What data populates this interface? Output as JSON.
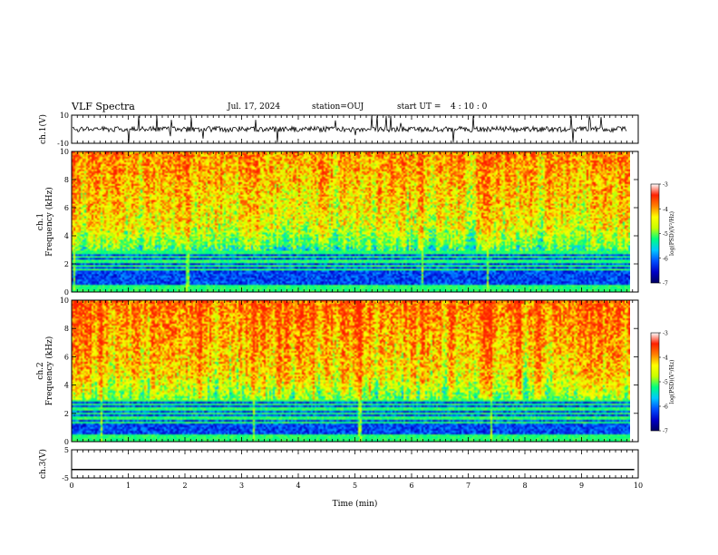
{
  "header": {
    "title": "VLF Spectra",
    "date": "Jul. 17, 2024",
    "station": "station=OUJ",
    "start_label": "start UT =",
    "start_time": "4 : 10 : 0"
  },
  "chart_data": [
    {
      "type": "line",
      "panel": "ch1-waveform",
      "ylabel": "ch.1(V)",
      "ylim": [
        -10,
        10
      ],
      "yticks": [
        "10",
        "-10"
      ],
      "xlim": [
        0,
        10
      ],
      "baseline": 0,
      "color": "#000000"
    },
    {
      "type": "heatmap",
      "panel": "ch1-spectrogram",
      "ylabel": "ch.1\nFrequency (kHz)",
      "ylabel_line1": "ch.1",
      "ylabel_line2": "Frequency (kHz)",
      "ylim": [
        0,
        10
      ],
      "yticks": [
        "0",
        "2",
        "4",
        "6",
        "8",
        "10"
      ],
      "xlim": [
        0,
        10
      ],
      "data_end_min": 9.85,
      "colorbar": {
        "label": "log(PSD)(V²/Hz)",
        "range": [
          -7,
          -3
        ],
        "ticks": [
          "-3",
          "-4",
          "-5",
          "-6",
          "-7"
        ]
      }
    },
    {
      "type": "heatmap",
      "panel": "ch2-spectrogram",
      "ylabel": "ch.2\nFrequency (kHz)",
      "ylabel_line1": "ch.2",
      "ylabel_line2": "Frequency (kHz)",
      "ylim": [
        0,
        10
      ],
      "yticks": [
        "0",
        "2",
        "4",
        "6",
        "8",
        "10"
      ],
      "xlim": [
        0,
        10
      ],
      "data_end_min": 9.85,
      "colorbar": {
        "label": "log(PSD)(V²/Hz)",
        "range": [
          -7,
          -3
        ],
        "ticks": [
          "-3",
          "-4",
          "-5",
          "-6",
          "-7"
        ]
      }
    },
    {
      "type": "line",
      "panel": "ch3-waveform",
      "ylabel": "ch.3(V)",
      "ylim": [
        -5,
        5
      ],
      "yticks": [
        "5",
        "-5"
      ],
      "xlim": [
        0,
        10
      ],
      "values_constant": -2,
      "data_end_min": 9.85
    }
  ],
  "xaxis": {
    "label": "Time (min)",
    "ticks": [
      "0",
      "1",
      "2",
      "3",
      "4",
      "5",
      "6",
      "7",
      "8",
      "9",
      "10"
    ]
  },
  "colors": {
    "colormap": [
      "#000060",
      "#0000c8",
      "#0050ff",
      "#00c8ff",
      "#00ff80",
      "#c8ff00",
      "#ffff00",
      "#ff8000",
      "#ff2000",
      "#ffffff"
    ]
  }
}
